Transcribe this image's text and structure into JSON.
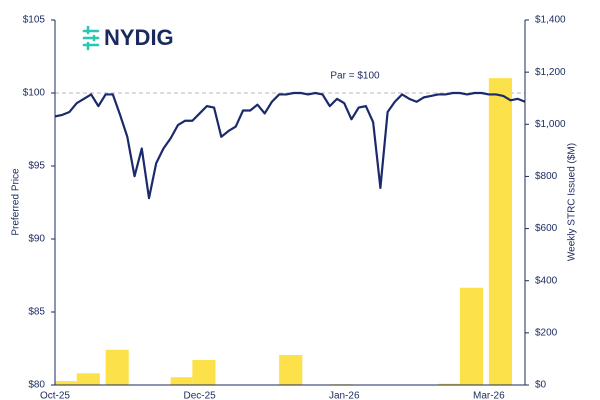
{
  "chart_data": {
    "type": "line-bar",
    "logo": "NYDIG",
    "y_label": "Preferred Price",
    "y2_label": "Weekly STRC Issued ($M)",
    "annotation": "Par = $100",
    "reference_line": 100,
    "categories": [
      "Oct-25",
      null,
      null,
      null,
      null,
      null,
      null,
      null,
      null,
      null,
      null,
      null,
      null,
      null,
      null,
      null,
      null,
      null,
      null,
      null,
      "Dec-25",
      null,
      null,
      null,
      null,
      null,
      null,
      null,
      null,
      null,
      null,
      null,
      null,
      null,
      null,
      null,
      null,
      null,
      null,
      null,
      "Jan-26",
      null,
      null,
      null,
      null,
      null,
      null,
      null,
      null,
      null,
      null,
      null,
      null,
      null,
      null,
      null,
      null,
      null,
      null,
      null,
      "Mar-26",
      null,
      null,
      null,
      null,
      null
    ],
    "series": [
      {
        "type": "line",
        "color": "#1b2a6b",
        "values": [
          98.4,
          98.5,
          98.7,
          99.3,
          99.6,
          99.9,
          99.1,
          99.9,
          99.9,
          98.5,
          97.0,
          94.3,
          96.2,
          92.8,
          95.2,
          96.2,
          96.9,
          97.8,
          98.1,
          98.1,
          98.6,
          99.1,
          99.0,
          97.0,
          97.4,
          97.7,
          98.8,
          98.8,
          99.2,
          98.6,
          99.4,
          99.9,
          99.9,
          100.0,
          100.0,
          99.9,
          100.0,
          99.9,
          99.1,
          99.6,
          99.3,
          98.2,
          99.0,
          99.1,
          98.0,
          93.5,
          98.7,
          99.4,
          99.9,
          99.6,
          99.4,
          99.7,
          99.8,
          99.9,
          99.9,
          100.0,
          100.0,
          99.9,
          100.0,
          100.0,
          99.9,
          99.9,
          99.8,
          99.5,
          99.6,
          99.4
        ]
      },
      {
        "type": "bar",
        "axis": "y2",
        "color": "#fde14a",
        "values": [
          15,
          null,
          null,
          45,
          null,
          null,
          null,
          135,
          null,
          null,
          null,
          null,
          null,
          null,
          null,
          null,
          30,
          null,
          null,
          96,
          null,
          null,
          null,
          null,
          null,
          null,
          null,
          null,
          null,
          null,
          null,
          115,
          null,
          null,
          null,
          null,
          null,
          null,
          3,
          null,
          null,
          null,
          null,
          null,
          null,
          null,
          null,
          null,
          null,
          null,
          null,
          null,
          null,
          5,
          null,
          null,
          373,
          null,
          null,
          null,
          1177,
          null,
          null,
          null,
          null,
          null
        ]
      }
    ],
    "ylim": [
      80,
      105
    ],
    "yticks": [
      {
        "value": 80,
        "label": "$80"
      },
      {
        "value": 85,
        "label": "$85"
      },
      {
        "value": 90,
        "label": "$90"
      },
      {
        "value": 95,
        "label": "$95"
      },
      {
        "value": 100,
        "label": "$100"
      },
      {
        "value": 105,
        "label": "$105"
      }
    ],
    "y2lim": [
      0,
      1400
    ],
    "y2ticks": [
      {
        "value": 0,
        "label": "$0"
      },
      {
        "value": 200,
        "label": "$200"
      },
      {
        "value": 400,
        "label": "$400"
      },
      {
        "value": 600,
        "label": "$600"
      },
      {
        "value": 800,
        "label": "$800"
      },
      {
        "value": 1000,
        "label": "$1,000"
      },
      {
        "value": 1200,
        "label": "$1,200"
      },
      {
        "value": 1400,
        "label": "$1,400"
      }
    ]
  }
}
